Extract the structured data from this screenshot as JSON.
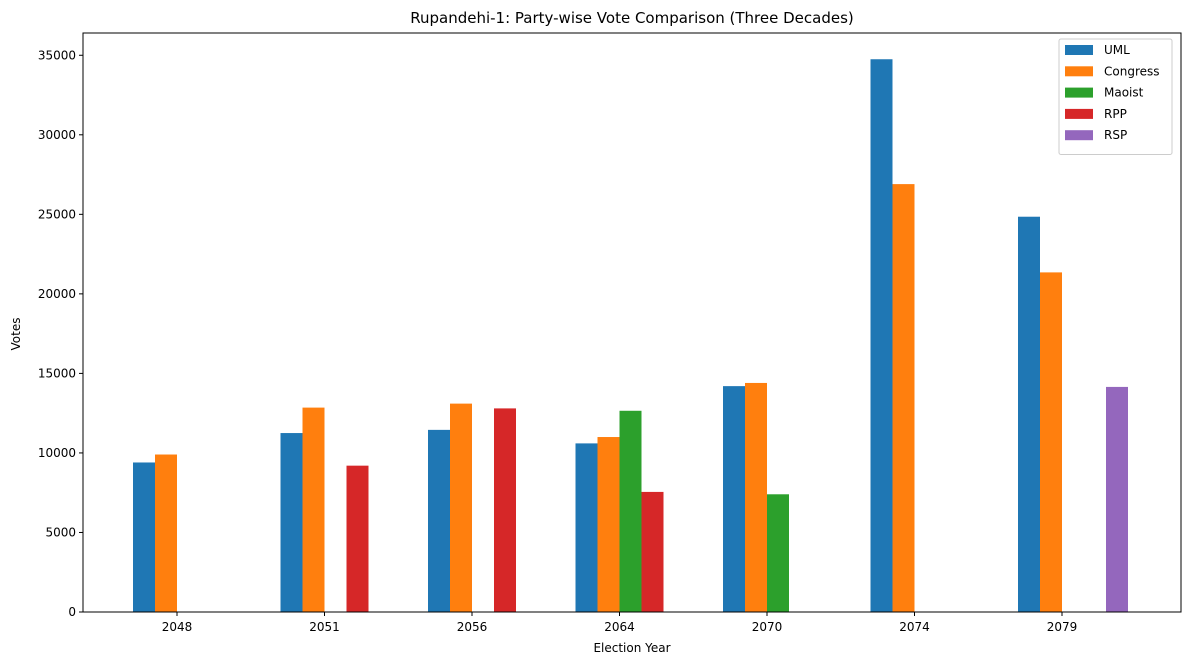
{
  "chart_data": {
    "type": "bar",
    "title": "Rupandehi-1: Party-wise Vote Comparison (Three Decades)",
    "xlabel": "Election Year",
    "ylabel": "Votes",
    "categories": [
      "2048",
      "2051",
      "2056",
      "2064",
      "2070",
      "2074",
      "2079"
    ],
    "ylim": [
      0,
      36400
    ],
    "yticks": [
      0,
      5000,
      10000,
      15000,
      20000,
      25000,
      30000,
      35000
    ],
    "grid": false,
    "legend_position": "top-right",
    "series": [
      {
        "name": "UML",
        "color": "#1f77b4",
        "values": [
          9400,
          11250,
          11450,
          10600,
          14200,
          34750,
          24850
        ]
      },
      {
        "name": "Congress",
        "color": "#ff7f0e",
        "values": [
          9900,
          12850,
          13100,
          11000,
          14400,
          26900,
          21350
        ]
      },
      {
        "name": "Maoist",
        "color": "#2ca02c",
        "values": [
          0,
          0,
          0,
          12650,
          7400,
          0,
          0
        ]
      },
      {
        "name": "RPP",
        "color": "#d62728",
        "values": [
          0,
          9200,
          12800,
          7550,
          0,
          0,
          0
        ]
      },
      {
        "name": "RSP",
        "color": "#9467bd",
        "values": [
          0,
          0,
          0,
          0,
          0,
          0,
          14150
        ]
      }
    ]
  }
}
